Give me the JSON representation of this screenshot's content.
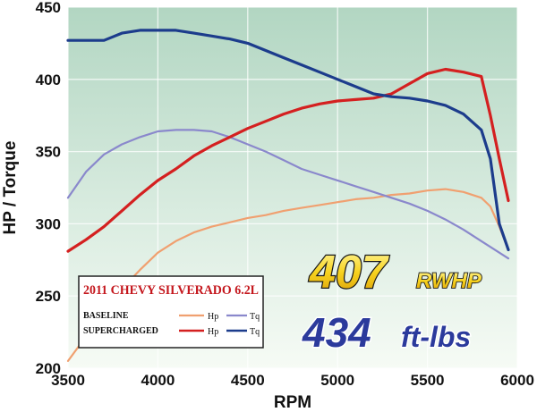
{
  "chart_data": {
    "type": "line",
    "title": "",
    "xlabel": "RPM",
    "ylabel": "HP / Torque",
    "xlim": [
      3500,
      6000
    ],
    "ylim": [
      200,
      450
    ],
    "x_ticks": [
      "3500",
      "4000",
      "4500",
      "5000",
      "5500",
      "6000"
    ],
    "y_ticks": [
      "200",
      "250",
      "300",
      "350",
      "400",
      "450"
    ],
    "grid": true,
    "legend": {
      "title": "2011 CHEVY SILVERADO 6.2L",
      "position": "bottom-left",
      "rows": [
        {
          "label": "BASELINE",
          "hp_key": "Hp",
          "tq_key": "Tq"
        },
        {
          "label": "SUPERCHARGED",
          "hp_key": "Hp",
          "tq_key": "Tq"
        }
      ]
    },
    "annotations": {
      "hp_value": "407",
      "hp_unit": "RWHP",
      "tq_value": "434",
      "tq_unit": "ft-lbs"
    },
    "series": [
      {
        "name": "BASELINE Hp",
        "color": "#f0a070",
        "x": [
          3500,
          3600,
          3700,
          3800,
          3900,
          4000,
          4100,
          4200,
          4300,
          4400,
          4500,
          4600,
          4700,
          4800,
          4900,
          5000,
          5100,
          5200,
          5300,
          5400,
          5500,
          5600,
          5700,
          5800,
          5850,
          5900,
          5950
        ],
        "y": [
          205,
          222,
          240,
          255,
          268,
          280,
          288,
          294,
          298,
          301,
          304,
          306,
          309,
          311,
          313,
          315,
          317,
          318,
          320,
          321,
          323,
          324,
          322,
          318,
          312,
          298,
          282
        ]
      },
      {
        "name": "BASELINE Tq",
        "color": "#8a88cc",
        "x": [
          3500,
          3600,
          3700,
          3800,
          3900,
          4000,
          4100,
          4200,
          4300,
          4400,
          4500,
          4600,
          4700,
          4800,
          4900,
          5000,
          5100,
          5200,
          5300,
          5400,
          5500,
          5600,
          5700,
          5800,
          5900,
          5950
        ],
        "y": [
          318,
          336,
          348,
          355,
          360,
          364,
          365,
          365,
          364,
          360,
          355,
          350,
          344,
          338,
          334,
          330,
          326,
          322,
          318,
          314,
          309,
          303,
          296,
          288,
          280,
          276
        ]
      },
      {
        "name": "SUPERCHARGED Hp",
        "color": "#d42020",
        "x": [
          3500,
          3600,
          3700,
          3800,
          3900,
          4000,
          4100,
          4200,
          4300,
          4400,
          4500,
          4600,
          4700,
          4800,
          4900,
          5000,
          5100,
          5200,
          5300,
          5400,
          5500,
          5600,
          5700,
          5800,
          5850,
          5900,
          5950
        ],
        "y": [
          281,
          289,
          298,
          309,
          320,
          330,
          338,
          347,
          354,
          360,
          366,
          371,
          376,
          380,
          383,
          385,
          386,
          387,
          390,
          397,
          404,
          407,
          405,
          402,
          375,
          345,
          316
        ]
      },
      {
        "name": "SUPERCHARGED Tq",
        "color": "#1c3c8c",
        "x": [
          3500,
          3600,
          3700,
          3800,
          3900,
          4000,
          4100,
          4200,
          4300,
          4400,
          4500,
          4600,
          4700,
          4800,
          4900,
          5000,
          5100,
          5200,
          5300,
          5400,
          5500,
          5600,
          5700,
          5800,
          5850,
          5900,
          5950
        ],
        "y": [
          427,
          427,
          427,
          432,
          434,
          434,
          434,
          432,
          430,
          428,
          425,
          420,
          415,
          410,
          405,
          400,
          395,
          390,
          388,
          387,
          385,
          382,
          376,
          365,
          345,
          300,
          282
        ]
      }
    ]
  }
}
